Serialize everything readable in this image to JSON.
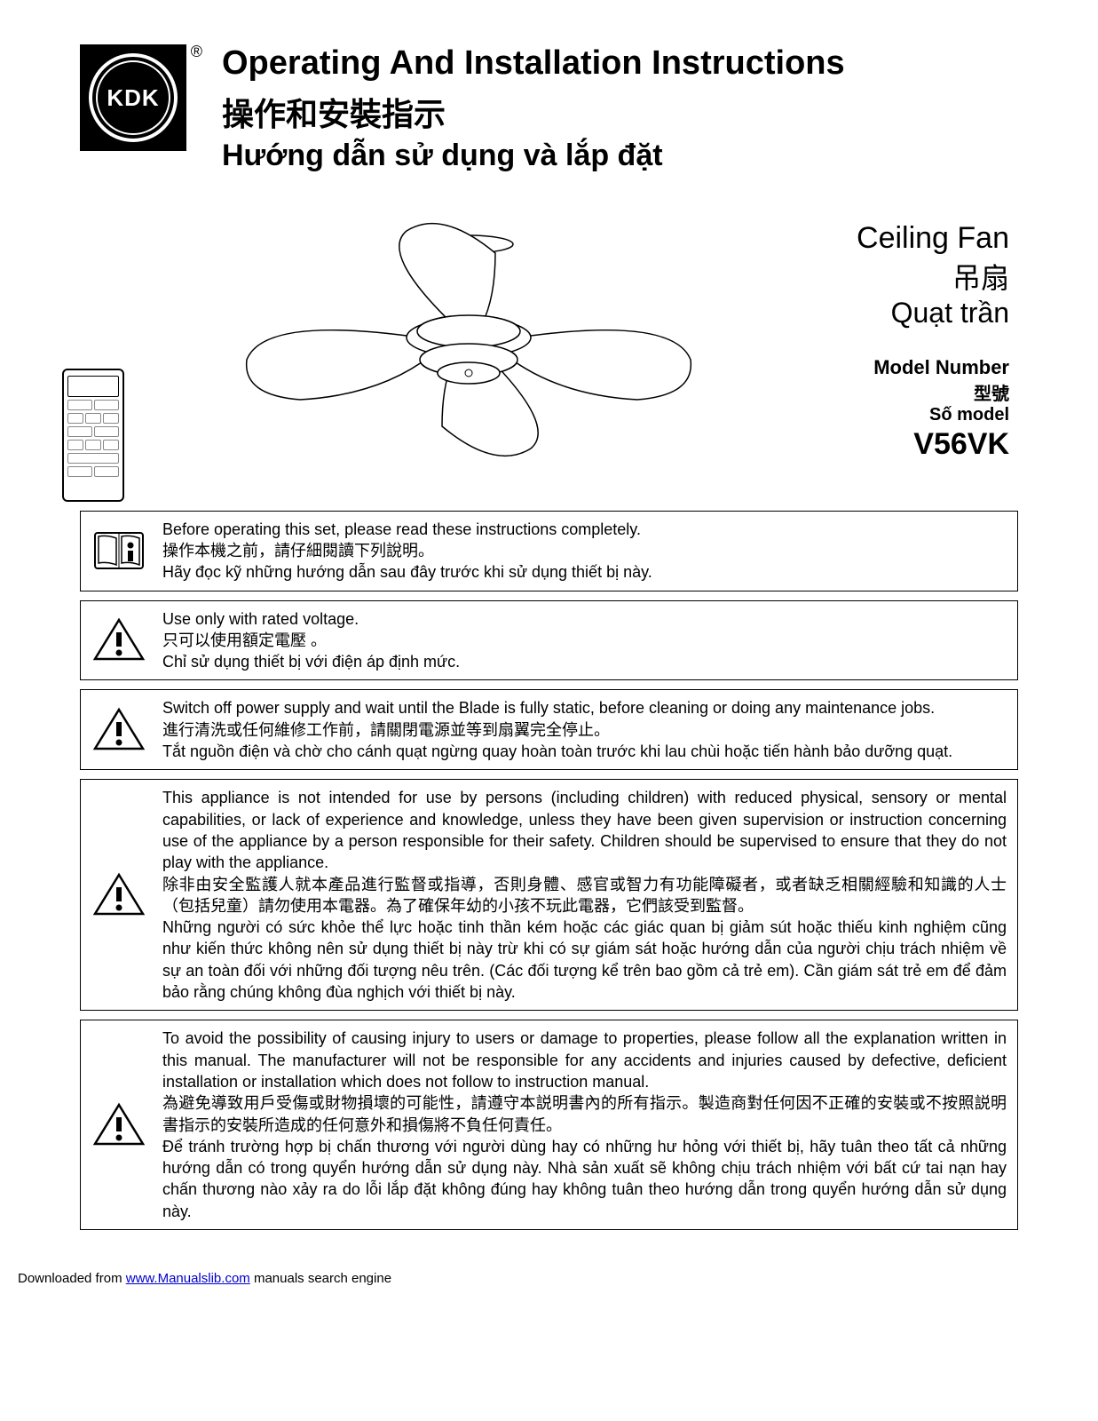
{
  "logo": {
    "text": "KDK",
    "reg": "®"
  },
  "titles": {
    "en": "Operating And Installation Instructions",
    "zh": "操作和安裝指示",
    "vi": "Hướng dẫn sử dụng và lắp đặt"
  },
  "product": {
    "name_en": "Ceiling Fan",
    "name_zh": "吊扇",
    "name_vi": "Quạt trần",
    "model_label_en": "Model Number",
    "model_label_zh": "型號",
    "model_label_vi": "Số model",
    "model_number": "V56VK"
  },
  "warnings": [
    {
      "icon": "info",
      "en": "Before operating this set, please read these instructions completely.",
      "zh": "操作本機之前，請仔細閱讀下列說明。",
      "vi": "Hãy đọc kỹ những hướng dẫn sau đây trước khi sử dụng thiết bị này."
    },
    {
      "icon": "warning",
      "en": "Use only with rated voltage.",
      "zh": "只可以使用額定電壓 。",
      "vi": "Chỉ sử dụng thiết bị với điện áp định mức."
    },
    {
      "icon": "warning",
      "en": "Switch off power supply and wait until the Blade is fully static, before cleaning or doing any maintenance jobs.",
      "zh": "進行清洗或任何維修工作前，請關閉電源並等到扇翼完全停止。",
      "vi": "Tắt nguồn điện và chờ cho cánh quạt ngừng quay hoàn toàn trước khi lau chùi hoặc tiến hành bảo dưỡng quạt."
    },
    {
      "icon": "warning",
      "en": "This appliance is not intended for use by persons (including children) with reduced physical, sensory or mental capabilities, or lack of experience and knowledge, unless they have been given supervision or instruction concerning use of the appliance by a person responsible for their safety. Children should be supervised to ensure that they do not play with the appliance.",
      "zh": "除非由安全監護人就本產品進行監督或指導，否則身體、感官或智力有功能障礙者，或者缺乏相關經驗和知識的人士（包括兒童）請勿使用本電器。為了確保年幼的小孩不玩此電器，它們該受到監督。",
      "vi": "Những người có sức khỏe thể lực hoặc tinh thần kém hoặc các giác quan bị giảm sút hoặc thiếu kinh nghiệm cũng như kiến thức không nên sử dụng thiết bị này trừ khi có sự giám sát hoặc hướng dẫn của người chịu trách nhiệm về sự an toàn đối với những đối tượng nêu trên. (Các đối tượng kể trên bao gồm cả trẻ em). Cần giám sát trẻ em để đảm bảo rằng chúng không đùa nghịch với thiết bị này."
    },
    {
      "icon": "warning",
      "en": "To avoid the possibility of causing injury to users or damage to properties, please follow all the explanation written in this manual. The manufacturer will not be responsible for any accidents and injuries caused by defective, deficient installation or installation which does not follow to instruction manual.",
      "zh": "為避免導致用戶受傷或財物損壞的可能性，請遵守本説明書內的所有指示。製造商對任何因不正確的安裝或不按照説明書指示的安裝所造成的任何意外和損傷將不負任何責任。",
      "vi": "Để tránh trường hợp bị chấn thương với người dùng hay có những hư hỏng với thiết bị, hãy tuân theo tất cả những hướng dẫn có trong quyển hướng dẫn sử dụng này. Nhà sản xuất sẽ không chịu trách nhiệm với bất cứ tai nạn hay chấn thương nào xảy ra do lỗi lắp đặt không đúng hay không tuân theo hướng dẫn trong quyển hướng dẫn sử dụng này."
    }
  ],
  "footer": {
    "prefix": "Downloaded from ",
    "link_text": "www.Manualslib.com",
    "suffix": " manuals search engine"
  }
}
